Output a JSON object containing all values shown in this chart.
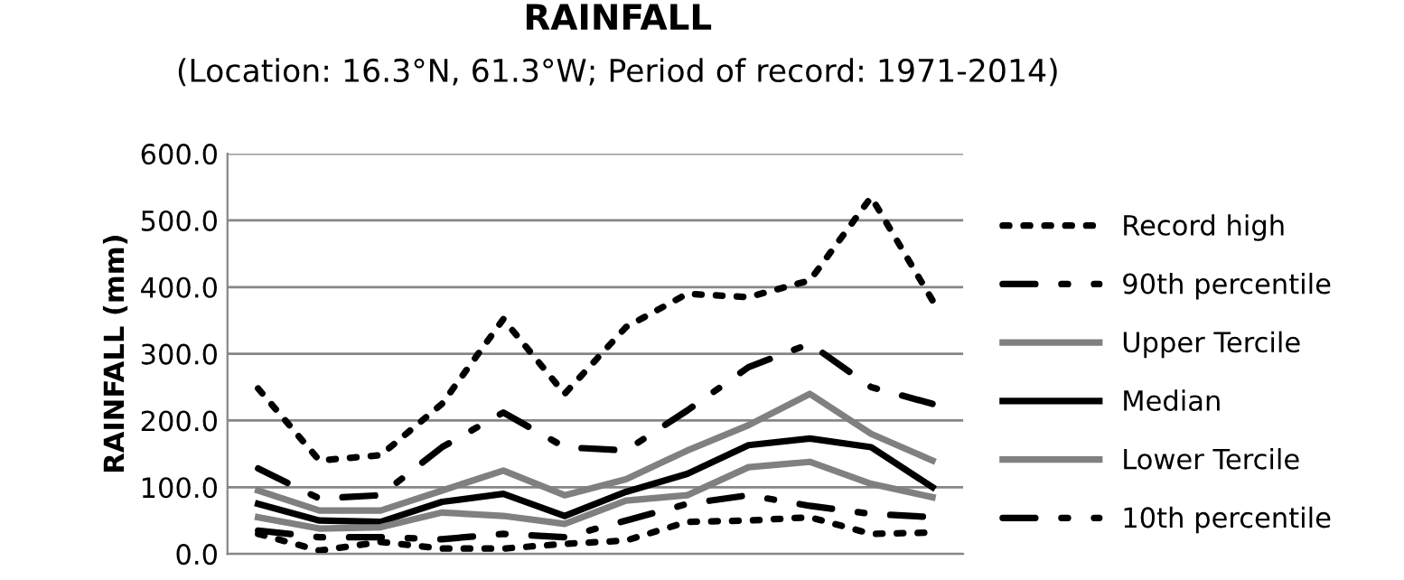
{
  "chart_data": {
    "type": "line",
    "title": "RAINFALL",
    "subtitle": "(Location: 16.3°N, 61.3°W; Period of record: 1971-2014)",
    "ylabel": "RAINFALL (mm)",
    "categories": [
      null,
      null,
      null,
      null,
      null,
      null,
      null,
      null,
      null,
      null,
      null,
      null
    ],
    "series": [
      {
        "name": "Record high",
        "color": "#000000",
        "line_style": "dotted",
        "values": [
          248,
          140,
          148,
          225,
          352,
          240,
          340,
          390,
          385,
          410,
          535,
          380
        ]
      },
      {
        "name": "90th percentile",
        "color": "#000000",
        "line_style": "dashdot",
        "values": [
          128,
          83,
          88,
          160,
          212,
          160,
          155,
          215,
          280,
          315,
          250,
          225
        ]
      },
      {
        "name": "Upper Tercile",
        "color": "#808080",
        "line_style": "solid",
        "values": [
          95,
          65,
          65,
          95,
          125,
          88,
          112,
          155,
          193,
          240,
          180,
          140
        ]
      },
      {
        "name": "Median",
        "color": "#000000",
        "line_style": "solid",
        "values": [
          75,
          50,
          48,
          78,
          90,
          57,
          93,
          120,
          163,
          173,
          160,
          100
        ]
      },
      {
        "name": "Lower Tercile",
        "color": "#808080",
        "line_style": "solid",
        "values": [
          55,
          38,
          40,
          62,
          57,
          45,
          80,
          88,
          130,
          138,
          105,
          85
        ]
      },
      {
        "name": "10th percentile",
        "color": "#000000",
        "line_style": "dashdot",
        "values": [
          35,
          25,
          25,
          22,
          30,
          25,
          50,
          75,
          88,
          72,
          60,
          55
        ]
      },
      {
        "color": "#000000",
        "line_style": "dotted",
        "values": [
          30,
          5,
          18,
          8,
          8,
          15,
          20,
          48,
          50,
          55,
          30,
          32
        ]
      }
    ],
    "ylim": [
      0,
      600
    ],
    "yticks": [
      {
        "value": 0,
        "label": "0.0"
      },
      {
        "value": 100,
        "label": "100.0"
      },
      {
        "value": 200,
        "label": "200.0"
      },
      {
        "value": 300,
        "label": "300.0"
      },
      {
        "value": 400,
        "label": "400.0"
      },
      {
        "value": 500,
        "label": "500.0"
      },
      {
        "value": 600,
        "label": "600.0"
      }
    ],
    "grid": "y",
    "legend": "right",
    "marker": "none"
  }
}
